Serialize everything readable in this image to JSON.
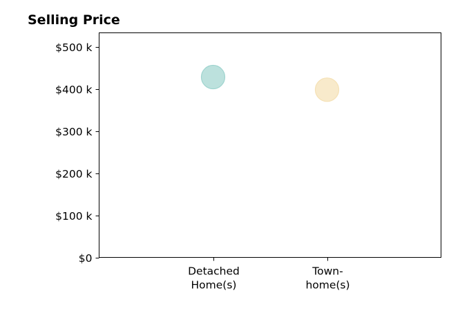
{
  "chart_data": {
    "type": "scatter",
    "title": "Selling Price",
    "xlabel": "",
    "ylabel": "",
    "categories": [
      [
        "Detached",
        "Home(s)"
      ],
      [
        "Town-",
        "home(s)"
      ]
    ],
    "series": [
      {
        "values": [
          428000,
          398000
        ],
        "colors": [
          "#9fd4cf",
          "#f5e1b5"
        ]
      }
    ],
    "yticks": [
      0,
      100000,
      200000,
      300000,
      400000,
      500000
    ],
    "ytick_labels": [
      "$0",
      "$100 k",
      "$200 k",
      "$300 k",
      "$400 k",
      "$500 k"
    ],
    "ylim": [
      0,
      533000
    ],
    "grid": false,
    "legend": "none"
  }
}
